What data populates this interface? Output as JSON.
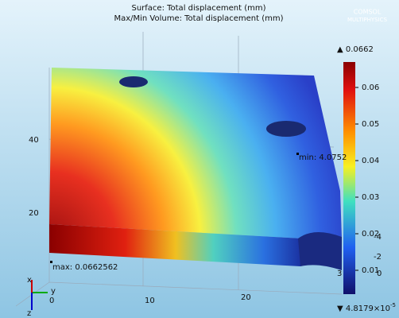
{
  "header": {
    "line1": "Surface: Total displacement (mm)",
    "line2": "Max/Min Volume: Total displacement (mm)",
    "logo_top": "COMSOL",
    "logo_bottom": "MULTIPHYSICS"
  },
  "colorbar": {
    "max_label": "▲ 0.0662",
    "min_label": "▼ 4.8179×10",
    "min_exponent": "-5",
    "ticks": [
      "0.06",
      "0.05",
      "0.04",
      "0.03",
      "0.02",
      "0.01"
    ]
  },
  "axes": {
    "vertical": [
      "40",
      "20"
    ],
    "horizontal": [
      "0",
      "10",
      "20"
    ],
    "depth": [
      "-4",
      "-2",
      "0",
      "3"
    ],
    "triad": [
      "y",
      "x",
      "z"
    ]
  },
  "annotations": {
    "max": "max: 0.0662562",
    "min": "min: 4.0752"
  }
}
